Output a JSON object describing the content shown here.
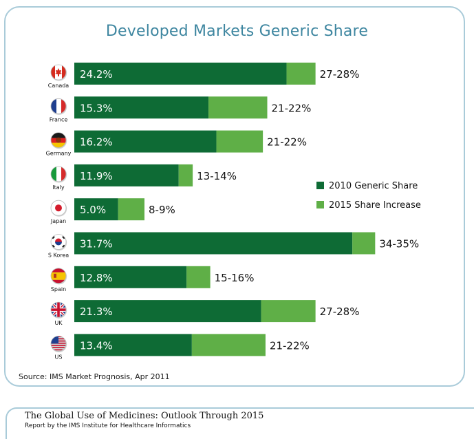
{
  "chart_data": {
    "type": "bar",
    "orientation": "horizontal",
    "stacked": true,
    "title": "Developed Markets Generic Share",
    "categories": [
      "Canada",
      "France",
      "Germany",
      "Italy",
      "Japan",
      "S Korea",
      "Spain",
      "UK",
      "US"
    ],
    "series": [
      {
        "name": "2010 Generic Share",
        "color": "#0e6b35",
        "values": [
          24.2,
          15.3,
          16.2,
          11.9,
          5.0,
          31.7,
          12.8,
          21.3,
          13.4
        ],
        "labels": [
          "24.2%",
          "15.3%",
          "16.2%",
          "11.9%",
          "5.0%",
          "31.7%",
          "12.8%",
          "21.3%",
          "13.4%"
        ]
      },
      {
        "name": "2015 Share Increase",
        "color": "#5faf47",
        "values": [
          3.3,
          6.7,
          5.3,
          1.6,
          3.0,
          2.6,
          2.7,
          6.2,
          8.4
        ],
        "labels": [
          "27-28%",
          "21-22%",
          "21-22%",
          "13-14%",
          "8-9%",
          "34-35%",
          "15-16%",
          "27-28%",
          "21-22%"
        ]
      }
    ],
    "xlim": [
      0,
      35
    ],
    "legend_position": "right",
    "grid": false
  },
  "flag_icons": [
    "canada-flag-icon",
    "france-flag-icon",
    "germany-flag-icon",
    "italy-flag-icon",
    "japan-flag-icon",
    "south-korea-flag-icon",
    "spain-flag-icon",
    "uk-flag-icon",
    "us-flag-icon"
  ],
  "source": "Source: IMS Market Prognosis, Apr 2011",
  "footer": {
    "title": "The Global Use of Medicines: Outlook Through 2015",
    "subtitle": "Report by the IMS Institute for Healthcare Informatics"
  },
  "colors": {
    "border": "#a9cbd9",
    "title": "#3e86a0"
  }
}
